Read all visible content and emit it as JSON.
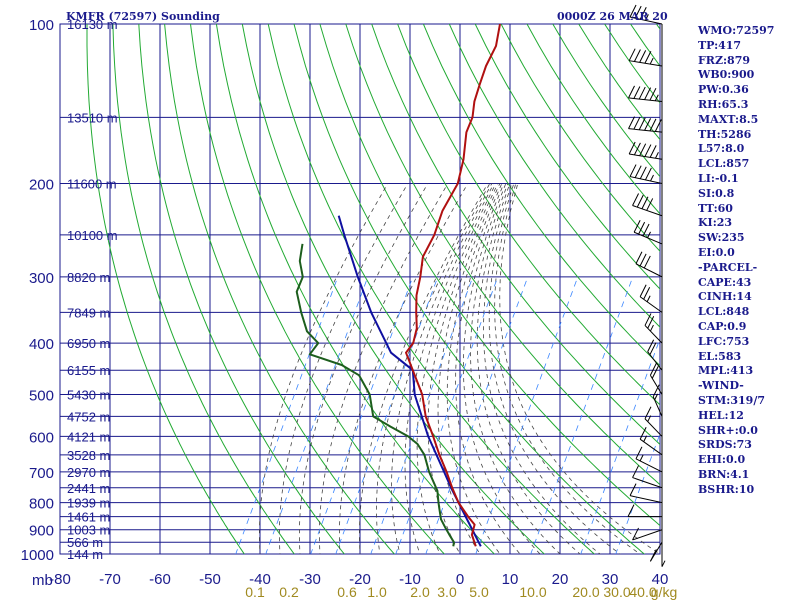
{
  "header": {
    "station": "KMFR (72597) Sounding",
    "datetime": "0000Z 26 MAR 20"
  },
  "indices": [
    "WMO:72597",
    "TP:417",
    "FRZ:879",
    "WB0:900",
    "PW:0.36",
    "RH:65.3",
    "MAXT:8.5",
    "TH:5286",
    "L57:8.0",
    "LCL:857",
    "LI:-0.1",
    "SI:0.8",
    "TT:60",
    "KI:23",
    "SW:235",
    "EI:0.0",
    "-PARCEL-",
    "CAPE:43",
    "CINH:14",
    "LCL:848",
    "CAP:0.9",
    "LFC:753",
    "EL:583",
    "MPL:413",
    "-WIND-",
    "STM:319/7",
    "HEL:12",
    "SHR+:0.0",
    "SRDS:73",
    "EHI:0.0",
    "BRN:4.1",
    "BSHR:10"
  ],
  "chart_data": {
    "type": "line",
    "diagram": "skew-t log-p",
    "title": "KMFR (72597) Sounding",
    "xlabel": "",
    "ylabel": "",
    "pressure_axis_label": "mb",
    "pressure_ticks": [
      100,
      200,
      300,
      400,
      500,
      600,
      700,
      800,
      900,
      1000
    ],
    "temperature_ticks": [
      -80,
      -70,
      -60,
      -50,
      -40,
      -30,
      -20,
      -10,
      0,
      10,
      20,
      30,
      40
    ],
    "mixing_ratio_ticks": [
      "0.1",
      "0.2",
      "0.6",
      "1.0",
      "2.0",
      "3.0",
      "5.0",
      "10.0",
      "20.0",
      "30.0",
      "40.0",
      "g/kg"
    ],
    "height_labels": [
      {
        "p": 100,
        "h": "16130 m"
      },
      {
        "p": 150,
        "h": "13510 m"
      },
      {
        "p": 200,
        "h": "11600 m"
      },
      {
        "p": 250,
        "h": "10100 m"
      },
      {
        "p": 300,
        "h": "8820 m"
      },
      {
        "p": 350,
        "h": "7849 m"
      },
      {
        "p": 400,
        "h": "6950 m"
      },
      {
        "p": 450,
        "h": "6155 m"
      },
      {
        "p": 500,
        "h": "5430 m"
      },
      {
        "p": 550,
        "h": "4752 m"
      },
      {
        "p": 600,
        "h": "4121 m"
      },
      {
        "p": 650,
        "h": "3528 m"
      },
      {
        "p": 700,
        "h": "2970 m"
      },
      {
        "p": 750,
        "h": "2441 m"
      },
      {
        "p": 800,
        "h": "1939 m"
      },
      {
        "p": 850,
        "h": "1461 m"
      },
      {
        "p": 900,
        "h": "1003 m"
      },
      {
        "p": 950,
        "h": "566 m"
      },
      {
        "p": 1000,
        "h": "144 m"
      }
    ],
    "temperature": [
      {
        "p": 967,
        "t": 2
      },
      {
        "p": 920,
        "t": -0.5
      },
      {
        "p": 880,
        "t": -1.5
      },
      {
        "p": 850,
        "t": -4
      },
      {
        "p": 800,
        "t": -8
      },
      {
        "p": 750,
        "t": -11.5
      },
      {
        "p": 700,
        "t": -15
      },
      {
        "p": 650,
        "t": -19
      },
      {
        "p": 600,
        "t": -23
      },
      {
        "p": 550,
        "t": -27.5
      },
      {
        "p": 500,
        "t": -31.5
      },
      {
        "p": 450,
        "t": -37
      },
      {
        "p": 417,
        "t": -41
      },
      {
        "p": 400,
        "t": -41
      },
      {
        "p": 375,
        "t": -42.5
      },
      {
        "p": 350,
        "t": -45
      },
      {
        "p": 325,
        "t": -47.5
      },
      {
        "p": 300,
        "t": -49.5
      },
      {
        "p": 275,
        "t": -52
      },
      {
        "p": 250,
        "t": -53
      },
      {
        "p": 225,
        "t": -55
      },
      {
        "p": 200,
        "t": -56
      },
      {
        "p": 180,
        "t": -58.5
      },
      {
        "p": 160,
        "t": -62
      },
      {
        "p": 150,
        "t": -63
      },
      {
        "p": 140,
        "t": -65
      },
      {
        "p": 130,
        "t": -66.5
      },
      {
        "p": 120,
        "t": -68
      },
      {
        "p": 110,
        "t": -69
      },
      {
        "p": 100,
        "t": -71.5
      }
    ],
    "dewpoint": [
      {
        "p": 967,
        "t": -2.5
      },
      {
        "p": 950,
        "t": -3
      },
      {
        "p": 920,
        "t": -5
      },
      {
        "p": 890,
        "t": -7
      },
      {
        "p": 860,
        "t": -9
      },
      {
        "p": 820,
        "t": -11
      },
      {
        "p": 800,
        "t": -12
      },
      {
        "p": 760,
        "t": -14
      },
      {
        "p": 700,
        "t": -18.5
      },
      {
        "p": 650,
        "t": -22
      },
      {
        "p": 620,
        "t": -25
      },
      {
        "p": 600,
        "t": -28
      },
      {
        "p": 575,
        "t": -33
      },
      {
        "p": 550,
        "t": -38
      },
      {
        "p": 500,
        "t": -42
      },
      {
        "p": 460,
        "t": -47
      },
      {
        "p": 440,
        "t": -52
      },
      {
        "p": 420,
        "t": -60
      },
      {
        "p": 400,
        "t": -60
      },
      {
        "p": 380,
        "t": -64
      },
      {
        "p": 350,
        "t": -68
      },
      {
        "p": 320,
        "t": -72
      },
      {
        "p": 300,
        "t": -73
      },
      {
        "p": 280,
        "t": -76
      },
      {
        "p": 260,
        "t": -78
      }
    ],
    "parcel": [
      {
        "p": 967,
        "t": 3
      },
      {
        "p": 857,
        "t": -4
      },
      {
        "p": 753,
        "t": -11.5
      },
      {
        "p": 700,
        "t": -15.5
      },
      {
        "p": 600,
        "t": -24
      },
      {
        "p": 500,
        "t": -33
      },
      {
        "p": 450,
        "t": -37
      },
      {
        "p": 417,
        "t": -44
      },
      {
        "p": 350,
        "t": -54
      },
      {
        "p": 300,
        "t": -62
      },
      {
        "p": 250,
        "t": -71
      },
      {
        "p": 230,
        "t": -75
      }
    ],
    "wind_barbs": [
      {
        "p": 100,
        "dir": 290,
        "spd": 35
      },
      {
        "p": 120,
        "dir": 285,
        "spd": 45
      },
      {
        "p": 140,
        "dir": 280,
        "spd": 55
      },
      {
        "p": 160,
        "dir": 280,
        "spd": 60
      },
      {
        "p": 180,
        "dir": 285,
        "spd": 55
      },
      {
        "p": 200,
        "dir": 290,
        "spd": 45
      },
      {
        "p": 230,
        "dir": 300,
        "spd": 40
      },
      {
        "p": 260,
        "dir": 305,
        "spd": 35
      },
      {
        "p": 300,
        "dir": 310,
        "spd": 30
      },
      {
        "p": 350,
        "dir": 320,
        "spd": 25
      },
      {
        "p": 400,
        "dir": 330,
        "spd": 25
      },
      {
        "p": 450,
        "dir": 335,
        "spd": 20
      },
      {
        "p": 500,
        "dir": 340,
        "spd": 20
      },
      {
        "p": 550,
        "dir": 345,
        "spd": 15
      },
      {
        "p": 600,
        "dir": 330,
        "spd": 15
      },
      {
        "p": 650,
        "dir": 320,
        "spd": 15
      },
      {
        "p": 700,
        "dir": 310,
        "spd": 15
      },
      {
        "p": 750,
        "dir": 300,
        "spd": 10
      },
      {
        "p": 800,
        "dir": 290,
        "spd": 10
      },
      {
        "p": 850,
        "dir": 270,
        "spd": 10
      },
      {
        "p": 900,
        "dir": 240,
        "spd": 10
      },
      {
        "p": 950,
        "dir": 200,
        "spd": 10
      },
      {
        "p": 967,
        "dir": 180,
        "spd": 5
      }
    ],
    "colors": {
      "isobar": "#1a1a8c",
      "isotherm": "#1a1a8c",
      "dry_adiabat": "#22aa33",
      "moist_adiabat": "#444444",
      "mixing_ratio": "#3a86ff",
      "temperature": "#b01010",
      "dewpoint": "#1d5e1d",
      "parcel": "#1010a0",
      "wind": "#000000",
      "label_blue": "#1a1a8c",
      "label_tan": "#a08a20"
    }
  }
}
